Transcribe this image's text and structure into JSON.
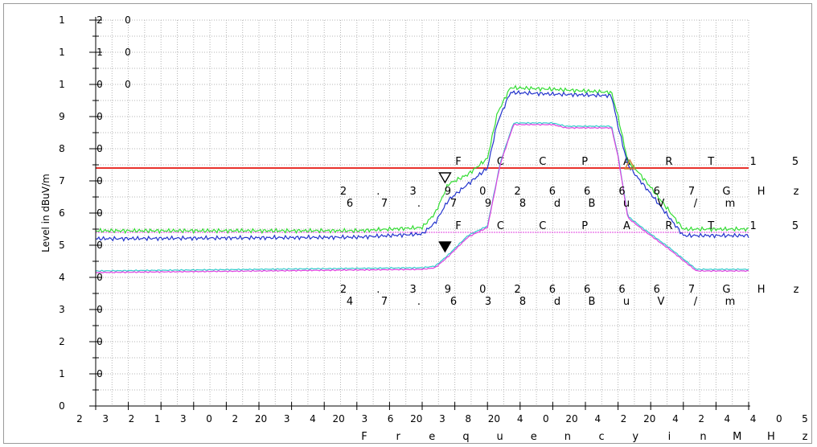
{
  "chart_data": {
    "type": "line",
    "ylabel": "Level in dBuV/m",
    "xlabel": "Frequency in MHz",
    "grid": true,
    "x_tick_labels": [
      "2",
      "3",
      "2",
      "1",
      "3",
      "0",
      "2",
      "20",
      "3",
      "4",
      "20",
      "3",
      "6",
      "20",
      "3",
      "8",
      "20",
      "4",
      "0",
      "20",
      "4",
      "2",
      "20",
      "4",
      "2",
      "4",
      "4",
      "0",
      "5"
    ],
    "y_tick_labels": [
      "1 2 0",
      "1 1 0",
      "1 0 0",
      "9 0",
      "8 0",
      "7 0",
      "6 0",
      "5 0",
      "4 0",
      "3 0",
      "2 0",
      "1 0",
      "0"
    ],
    "ylim": [
      0,
      120
    ],
    "limits": [
      {
        "label": "F C C P A R T 1 5",
        "value": 74,
        "color": "#e8322d"
      },
      {
        "label": "F C C P A R T 1 5",
        "value": 54,
        "color": "#e040e0"
      }
    ],
    "annotations": [
      {
        "lines": [
          "2 . 3 9 0 2 6 6 6 6 7 G H z",
          "6 7 . 7 9 8 d B u V / m"
        ]
      },
      {
        "lines": [
          "2 . 3 9 0 2 6 6 6 6 7 G H z",
          "4 7 . 6 3 8 d B u V / m"
        ]
      }
    ],
    "series": [
      {
        "color": "#33dd33",
        "x": [
          0,
          0.4,
          0.5,
          0.52,
          0.54,
          0.57,
          0.6,
          0.615,
          0.635,
          0.7,
          0.79,
          0.8,
          0.815,
          0.83,
          0.85,
          0.9,
          0.93,
          1.0
        ],
        "values": [
          54.5,
          54.5,
          55.5,
          60,
          69,
          72,
          77,
          91,
          99,
          98.5,
          97.5,
          90,
          76,
          73,
          68,
          55,
          55,
          55
        ]
      },
      {
        "color": "#2233cc",
        "x": [
          0,
          0.4,
          0.5,
          0.52,
          0.54,
          0.57,
          0.6,
          0.615,
          0.635,
          0.7,
          0.79,
          0.8,
          0.815,
          0.83,
          0.85,
          0.9,
          0.93,
          1.0
        ],
        "values": [
          52,
          52.5,
          53.5,
          57,
          64,
          69,
          74,
          88,
          97.5,
          97,
          96.5,
          87,
          75,
          71,
          66,
          53,
          53,
          53
        ]
      },
      {
        "color": "#33cccc",
        "x": [
          0,
          0.5,
          0.52,
          0.54,
          0.57,
          0.6,
          0.62,
          0.64,
          0.7,
          0.72,
          0.79,
          0.8,
          0.815,
          0.84,
          0.88,
          0.92,
          1.0
        ],
        "values": [
          42,
          43,
          43.5,
          47,
          53,
          56,
          76,
          88,
          88,
          87,
          87,
          78,
          59,
          55,
          49,
          42.5,
          42.5
        ]
      },
      {
        "color": "#e040e0",
        "x": [
          0,
          0.5,
          0.52,
          0.54,
          0.57,
          0.6,
          0.62,
          0.64,
          0.7,
          0.72,
          0.79,
          0.8,
          0.815,
          0.84,
          0.88,
          0.92,
          1.0
        ],
        "values": [
          41.5,
          42.5,
          43,
          46.5,
          52.5,
          55.5,
          75.5,
          87.5,
          87.5,
          86.5,
          86.5,
          77.5,
          58.5,
          54.5,
          48.5,
          42,
          42
        ]
      }
    ],
    "markers": [
      {
        "symbol": "open-triangle-down",
        "x": 0.535,
        "value": 71
      },
      {
        "symbol": "filled-triangle-down",
        "x": 0.535,
        "value": 49.5
      },
      {
        "symbol": "open-triangle-up",
        "x": 0.818,
        "value": 75
      }
    ]
  }
}
